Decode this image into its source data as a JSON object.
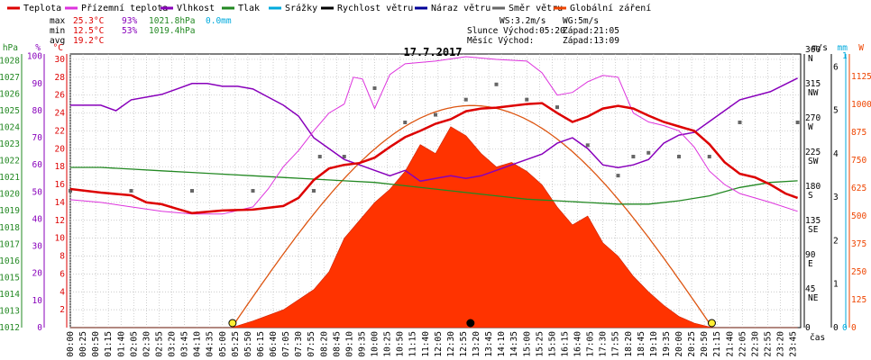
{
  "chart_data": {
    "type": "line",
    "title": "17.7.2017",
    "legend": [
      {
        "name": "Teplota",
        "color": "#dd0000"
      },
      {
        "name": "Přízemní teplota",
        "color": "#dd33dd"
      },
      {
        "name": "Vlhkost",
        "color": "#8800bb"
      },
      {
        "name": "Tlak",
        "color": "#228822"
      },
      {
        "name": "Srážky",
        "color": "#00aadd"
      },
      {
        "name": "Rychlost větru",
        "color": "#000000"
      },
      {
        "name": "Náraz větru",
        "color": "#000099"
      },
      {
        "name": "Směr větru",
        "color": "#666666"
      },
      {
        "name": "Globální záření",
        "color": "#ee4400"
      }
    ],
    "stats": {
      "max": {
        "label": "max",
        "temp": "25.3°C",
        "hum": "93%",
        "press": "1021.8hPa",
        "rain": "0.0mm"
      },
      "min": {
        "label": "min",
        "temp": "12.5°C",
        "hum": "53%",
        "press": "1019.4hPa"
      },
      "avg": {
        "label": "avg",
        "temp": "19.2°C"
      }
    },
    "info": {
      "ws": "WS:3.2m/s",
      "wg": "WG:5m/s",
      "sun": "Slunce Východ:05:20",
      "sun_set": "Západ:21:05",
      "moon": "Měsíc  Východ:",
      "moon_set": "Západ:13:09"
    },
    "axes": {
      "hpa": {
        "title": "hPa",
        "ticks": [
          1012,
          1013,
          1014,
          1015,
          1016,
          1017,
          1018,
          1019,
          1020,
          1021,
          1022,
          1023,
          1024,
          1025,
          1026,
          1027,
          1028
        ],
        "color": "#228822"
      },
      "pct": {
        "title": "%",
        "ticks": [
          0,
          10,
          20,
          30,
          40,
          50,
          60,
          70,
          80,
          90,
          100
        ],
        "color": "#8800bb"
      },
      "temp": {
        "title": "°C",
        "ticks": [
          2,
          4,
          6,
          8,
          10,
          12,
          14,
          16,
          18,
          20,
          22,
          24,
          26,
          28,
          30
        ],
        "color": "#dd0000"
      },
      "dir": {
        "title": "m/s",
        "ticks": [
          "0",
          "45 NE",
          "90 E",
          "135 SE",
          "180 S",
          "225 SW",
          "270 W",
          "315 NW",
          "360 N"
        ],
        "color": "#000000"
      },
      "ms": {
        "ticks": [
          0,
          1,
          2,
          3,
          4,
          5,
          6
        ],
        "color": "#000000"
      },
      "mm": {
        "title": "mm",
        "ticks": [
          0,
          1
        ],
        "color": "#00aadd"
      },
      "w": {
        "title": "W",
        "ticks": [
          0,
          125,
          250,
          375,
          500,
          625,
          750,
          875,
          1000,
          1125
        ],
        "color": "#ee4400"
      },
      "x_unit": "čas",
      "time_ticks": [
        "00:00",
        "00:25",
        "00:50",
        "01:15",
        "01:40",
        "02:05",
        "02:30",
        "02:55",
        "03:20",
        "03:45",
        "04:10",
        "04:35",
        "05:00",
        "05:25",
        "05:50",
        "06:15",
        "06:40",
        "07:05",
        "07:30",
        "07:55",
        "08:20",
        "08:45",
        "09:10",
        "09:35",
        "10:00",
        "10:25",
        "10:50",
        "11:15",
        "11:40",
        "12:05",
        "12:30",
        "12:55",
        "13:20",
        "13:45",
        "14:10",
        "14:35",
        "15:00",
        "15:25",
        "15:50",
        "16:15",
        "16:40",
        "17:05",
        "17:30",
        "17:55",
        "18:20",
        "18:45",
        "19:10",
        "19:35",
        "20:00",
        "20:25",
        "20:50",
        "21:15",
        "21:40",
        "22:05",
        "22:30",
        "22:55",
        "23:20",
        "23:45"
      ]
    },
    "series": {
      "temperature": [
        [
          0,
          15.5
        ],
        [
          1,
          15.1
        ],
        [
          2,
          14.8
        ],
        [
          2.5,
          14.0
        ],
        [
          3,
          13.8
        ],
        [
          3.5,
          13.3
        ],
        [
          4,
          12.8
        ],
        [
          5,
          13.1
        ],
        [
          6,
          13.2
        ],
        [
          7,
          13.6
        ],
        [
          7.5,
          14.5
        ],
        [
          8,
          16.5
        ],
        [
          8.5,
          17.8
        ],
        [
          9,
          18.2
        ],
        [
          9.5,
          18.4
        ],
        [
          10,
          19.0
        ],
        [
          10.5,
          20.2
        ],
        [
          11,
          21.3
        ],
        [
          11.5,
          22.0
        ],
        [
          12,
          22.8
        ],
        [
          12.5,
          23.3
        ],
        [
          13,
          24.2
        ],
        [
          13.5,
          24.5
        ],
        [
          14,
          24.6
        ],
        [
          14.5,
          24.8
        ],
        [
          15,
          25.0
        ],
        [
          15.5,
          25.1
        ],
        [
          16,
          24.0
        ],
        [
          16.5,
          23.0
        ],
        [
          17,
          23.6
        ],
        [
          17.5,
          24.5
        ],
        [
          18,
          24.8
        ],
        [
          18.5,
          24.5
        ],
        [
          19,
          23.7
        ],
        [
          19.5,
          23.0
        ],
        [
          20,
          22.5
        ],
        [
          20.5,
          22.0
        ],
        [
          21,
          20.5
        ],
        [
          21.5,
          18.5
        ],
        [
          22,
          17.2
        ],
        [
          22.5,
          16.8
        ],
        [
          23,
          16.0
        ],
        [
          23.5,
          15.0
        ],
        [
          23.9,
          14.5
        ]
      ],
      "ground_temp": [
        [
          0,
          14.3
        ],
        [
          1,
          14.0
        ],
        [
          2,
          13.5
        ],
        [
          3,
          13.0
        ],
        [
          4,
          12.7
        ],
        [
          5,
          12.7
        ],
        [
          6,
          13.5
        ],
        [
          6.5,
          15.5
        ],
        [
          7,
          18.0
        ],
        [
          7.5,
          19.8
        ],
        [
          8,
          22.0
        ],
        [
          8.5,
          24.0
        ],
        [
          9,
          25.0
        ],
        [
          9.3,
          28.0
        ],
        [
          9.6,
          27.8
        ],
        [
          10,
          24.5
        ],
        [
          10.5,
          28.3
        ],
        [
          11,
          29.5
        ],
        [
          12,
          29.8
        ],
        [
          13,
          30.3
        ],
        [
          14,
          30.0
        ],
        [
          15,
          29.8
        ],
        [
          15.5,
          28.5
        ],
        [
          16,
          26.0
        ],
        [
          16.5,
          26.3
        ],
        [
          17,
          27.5
        ],
        [
          17.5,
          28.2
        ],
        [
          18,
          28.0
        ],
        [
          18.5,
          24.0
        ],
        [
          19,
          23.0
        ],
        [
          19.5,
          22.6
        ],
        [
          20,
          22.0
        ],
        [
          20.5,
          20.2
        ],
        [
          21,
          17.5
        ],
        [
          21.5,
          16.0
        ],
        [
          22,
          15.0
        ],
        [
          23,
          14.0
        ],
        [
          23.9,
          13.0
        ]
      ],
      "humidity": [
        [
          0,
          82
        ],
        [
          1,
          82
        ],
        [
          1.5,
          80
        ],
        [
          2,
          84
        ],
        [
          3,
          86
        ],
        [
          3.5,
          88
        ],
        [
          4,
          90
        ],
        [
          4.5,
          90
        ],
        [
          5,
          89
        ],
        [
          5.5,
          89
        ],
        [
          6,
          88
        ],
        [
          6.5,
          85
        ],
        [
          7,
          82
        ],
        [
          7.5,
          78
        ],
        [
          8,
          70
        ],
        [
          8.5,
          66
        ],
        [
          9,
          62
        ],
        [
          9.5,
          60
        ],
        [
          10,
          58
        ],
        [
          10.5,
          56
        ],
        [
          11,
          58
        ],
        [
          11.5,
          54
        ],
        [
          12,
          55
        ],
        [
          12.5,
          56
        ],
        [
          13,
          55
        ],
        [
          13.5,
          56
        ],
        [
          14,
          58
        ],
        [
          14.5,
          60
        ],
        [
          15,
          62
        ],
        [
          15.5,
          64
        ],
        [
          16,
          68
        ],
        [
          16.5,
          70
        ],
        [
          17,
          66
        ],
        [
          17.5,
          60
        ],
        [
          18,
          59
        ],
        [
          18.5,
          60
        ],
        [
          19,
          62
        ],
        [
          19.5,
          68
        ],
        [
          20,
          71
        ],
        [
          20.5,
          72
        ],
        [
          21,
          76
        ],
        [
          21.5,
          80
        ],
        [
          22,
          84
        ],
        [
          23,
          87
        ],
        [
          23.9,
          92
        ]
      ],
      "pressure": [
        [
          0,
          1021.6
        ],
        [
          1,
          1021.6
        ],
        [
          2,
          1021.5
        ],
        [
          3,
          1021.4
        ],
        [
          4,
          1021.3
        ],
        [
          5,
          1021.2
        ],
        [
          6,
          1021.1
        ],
        [
          7,
          1021.0
        ],
        [
          8,
          1020.9
        ],
        [
          9,
          1020.8
        ],
        [
          10,
          1020.7
        ],
        [
          11,
          1020.5
        ],
        [
          12,
          1020.3
        ],
        [
          13,
          1020.1
        ],
        [
          14,
          1019.9
        ],
        [
          15,
          1019.7
        ],
        [
          16,
          1019.6
        ],
        [
          17,
          1019.5
        ],
        [
          18,
          1019.4
        ],
        [
          19,
          1019.4
        ],
        [
          20,
          1019.6
        ],
        [
          21,
          1019.9
        ],
        [
          22,
          1020.4
        ],
        [
          23,
          1020.7
        ],
        [
          23.9,
          1020.8
        ]
      ],
      "wind_dir": [
        [
          0,
          180
        ],
        [
          2,
          180
        ],
        [
          4,
          180
        ],
        [
          6,
          180
        ],
        [
          8,
          180
        ],
        [
          8.2,
          225
        ],
        [
          9.0,
          225
        ],
        [
          10,
          315
        ],
        [
          11,
          270
        ],
        [
          12,
          280
        ],
        [
          13,
          300
        ],
        [
          14,
          320
        ],
        [
          15,
          300
        ],
        [
          16,
          290
        ],
        [
          17,
          240
        ],
        [
          18,
          200
        ],
        [
          18.5,
          225
        ],
        [
          19,
          230
        ],
        [
          20,
          225
        ],
        [
          21,
          225
        ],
        [
          22,
          270
        ],
        [
          23.9,
          270
        ]
      ],
      "radiation": [
        [
          0,
          0
        ],
        [
          5.3,
          0
        ],
        [
          6,
          30
        ],
        [
          7,
          80
        ],
        [
          8,
          170
        ],
        [
          8.5,
          250
        ],
        [
          9,
          400
        ],
        [
          9.5,
          480
        ],
        [
          10,
          560
        ],
        [
          10.5,
          620
        ],
        [
          11,
          700
        ],
        [
          11.5,
          820
        ],
        [
          12,
          780
        ],
        [
          12.5,
          900
        ],
        [
          13,
          860
        ],
        [
          13.5,
          780
        ],
        [
          14,
          720
        ],
        [
          14.5,
          740
        ],
        [
          15,
          700
        ],
        [
          15.5,
          640
        ],
        [
          16,
          540
        ],
        [
          16.5,
          460
        ],
        [
          17,
          500
        ],
        [
          17.5,
          380
        ],
        [
          18,
          320
        ],
        [
          18.5,
          230
        ],
        [
          19,
          160
        ],
        [
          19.5,
          100
        ],
        [
          20,
          50
        ],
        [
          20.5,
          20
        ],
        [
          21.1,
          0
        ],
        [
          23.9,
          0
        ]
      ]
    }
  }
}
